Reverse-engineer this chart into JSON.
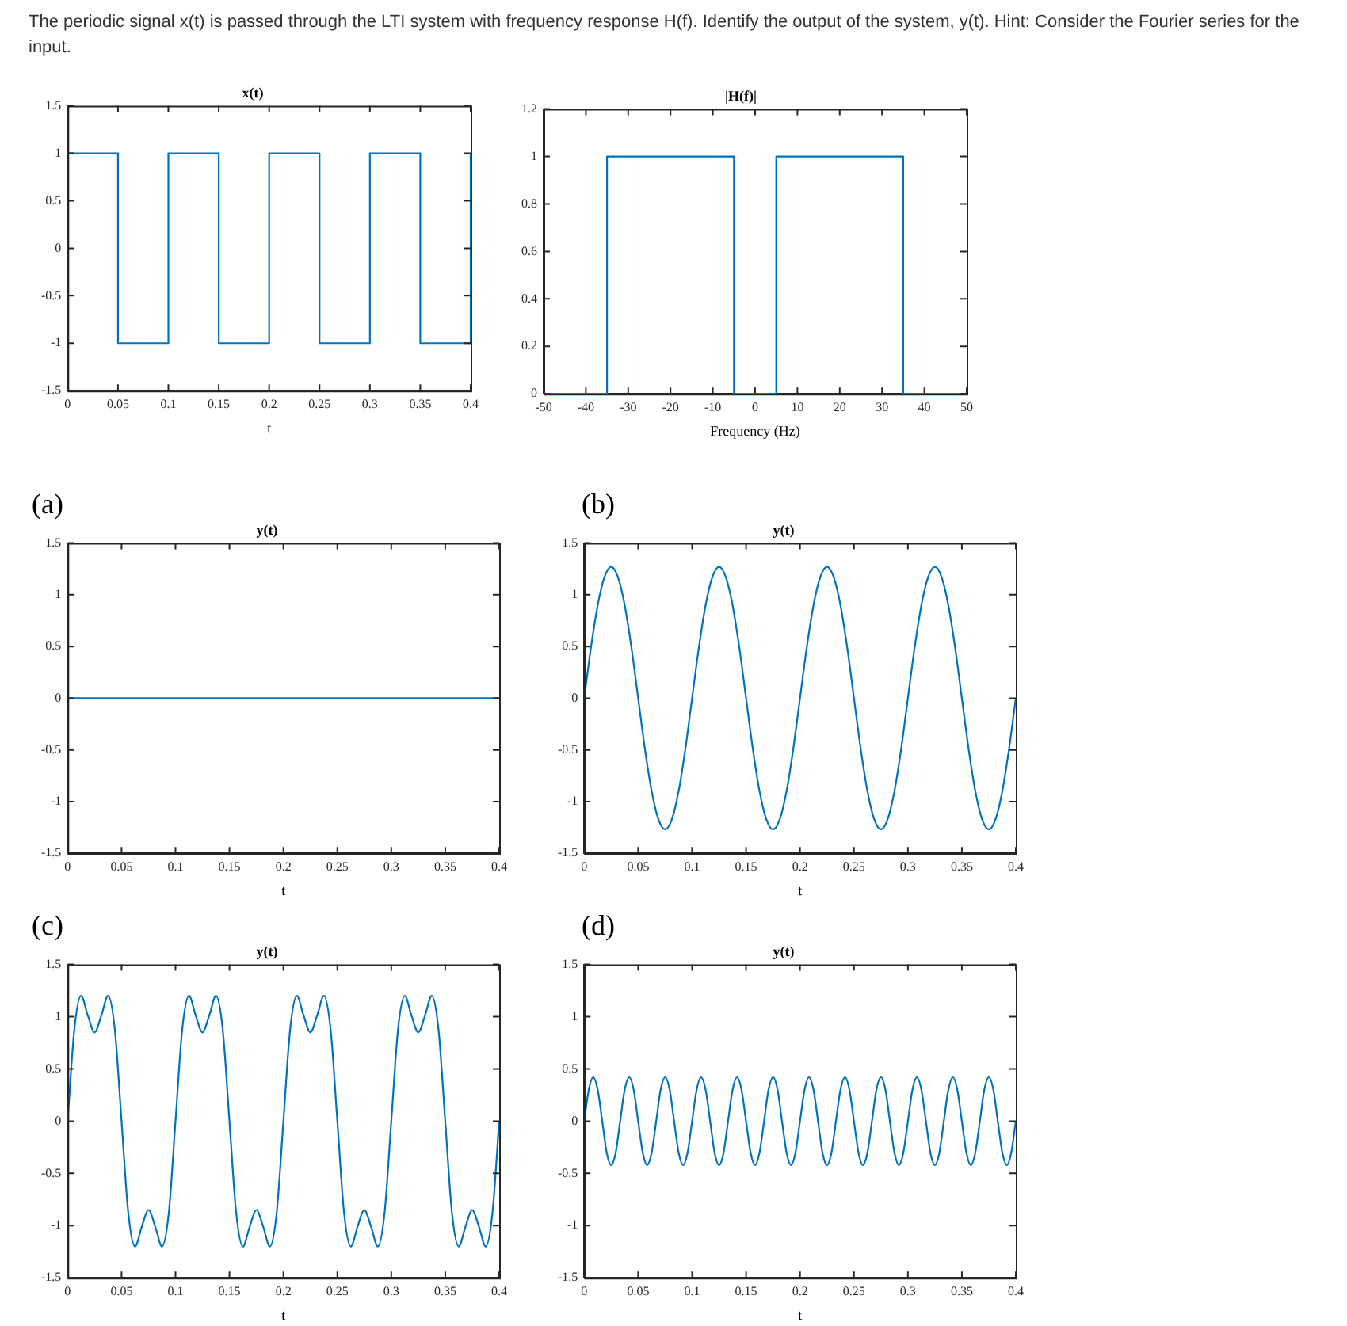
{
  "chart_data": [
    {
      "type": "step",
      "title": "x(t)",
      "xlabel": "t",
      "annotations": [
        "The periodic signal x(t) is passed through the LTI system with frequency response H(f).  Identify the output of the system, y(t).  Hint: Consider the Fourier series for the input."
      ],
      "x": [
        0,
        0.05,
        0.1,
        0.15,
        0.2,
        0.25,
        0.3,
        0.35,
        0.4
      ],
      "values": [
        1,
        -1,
        1,
        -1,
        1,
        -1,
        1,
        -1,
        1
      ],
      "color": "#0072bd",
      "xlim": [
        0,
        0.4
      ],
      "xticks": [
        0,
        0.05,
        0.1,
        0.15,
        0.2,
        0.25,
        0.3,
        0.35,
        0.4
      ],
      "ylim": [
        -1.5,
        1.5
      ],
      "yticks": [
        -1.5,
        -1,
        -0.5,
        0,
        0.5,
        1,
        1.5
      ]
    },
    {
      "type": "step",
      "title": "|H(f)|",
      "xlabel": "Frequency (Hz)",
      "x": [
        -50,
        -35,
        -5,
        5,
        35,
        50
      ],
      "values": [
        0,
        1,
        0,
        1,
        0,
        0
      ],
      "color": "#0072bd",
      "xlim": [
        -50,
        50
      ],
      "xticks": [
        -50,
        -40,
        -30,
        -20,
        -10,
        0,
        10,
        20,
        30,
        40,
        50
      ],
      "ylim": [
        0,
        1.2
      ],
      "yticks": [
        0,
        0.2,
        0.4,
        0.6,
        0.8,
        1,
        1.2
      ]
    },
    {
      "type": "line",
      "title": "y(t)",
      "xlabel": "t",
      "annotations": [
        "(a)"
      ],
      "x": [
        0,
        0.4
      ],
      "values": [
        0,
        0
      ],
      "color": "#0072bd",
      "xlim": [
        0,
        0.4
      ],
      "xticks": [
        0,
        0.05,
        0.1,
        0.15,
        0.2,
        0.25,
        0.3,
        0.35,
        0.4
      ],
      "ylim": [
        -1.5,
        1.5
      ],
      "yticks": [
        -1.5,
        -1,
        -0.5,
        0,
        0.5,
        1,
        1.5
      ]
    },
    {
      "type": "line",
      "title": "y(t)",
      "xlabel": "t",
      "annotations": [
        "(b)"
      ],
      "x": [
        0,
        0.00625,
        0.0125,
        0.01875,
        0.025,
        0.03125,
        0.0375,
        0.04375,
        0.05,
        0.05625,
        0.0625,
        0.06875,
        0.075,
        0.08125,
        0.0875,
        0.09375,
        0.1,
        0.10625,
        0.1125,
        0.11875,
        0.125,
        0.13125,
        0.1375,
        0.14375,
        0.15,
        0.15625,
        0.1625,
        0.16875,
        0.175,
        0.18125,
        0.1875,
        0.19375,
        0.2,
        0.20625,
        0.2125,
        0.21875,
        0.225,
        0.23125,
        0.2375,
        0.24375,
        0.25,
        0.25625,
        0.2625,
        0.26875,
        0.275,
        0.28125,
        0.2875,
        0.29375,
        0.3,
        0.30625,
        0.3125,
        0.31875,
        0.325,
        0.33125,
        0.3375,
        0.34375,
        0.35,
        0.35625,
        0.3625,
        0.36875,
        0.375,
        0.38125,
        0.3875,
        0.39375,
        0.4
      ],
      "values": [
        0,
        0.49,
        0.9,
        1.17,
        1.27,
        1.17,
        0.9,
        0.49,
        0,
        -0.49,
        -0.9,
        -1.17,
        -1.27,
        -1.17,
        -0.9,
        -0.49,
        0,
        0.49,
        0.9,
        1.17,
        1.27,
        1.17,
        0.9,
        0.49,
        0,
        -0.49,
        -0.9,
        -1.17,
        -1.27,
        -1.17,
        -0.9,
        -0.49,
        0,
        0.49,
        0.9,
        1.17,
        1.27,
        1.17,
        0.9,
        0.49,
        0,
        -0.49,
        -0.9,
        -1.17,
        -1.27,
        -1.17,
        -0.9,
        -0.49,
        0,
        0.49,
        0.9,
        1.17,
        1.27,
        1.17,
        0.9,
        0.49,
        0,
        -0.49,
        -0.9,
        -1.17,
        -1.27,
        -1.17,
        -0.9,
        -0.49,
        0
      ],
      "color": "#0072bd",
      "xlim": [
        0,
        0.4
      ],
      "xticks": [
        0,
        0.05,
        0.1,
        0.15,
        0.2,
        0.25,
        0.3,
        0.35,
        0.4
      ],
      "ylim": [
        -1.5,
        1.5
      ],
      "yticks": [
        -1.5,
        -1,
        -0.5,
        0,
        0.5,
        1,
        1.5
      ]
    },
    {
      "type": "line",
      "title": "y(t)",
      "xlabel": "t",
      "annotations": [
        "(c)"
      ],
      "x": [
        0,
        0.00625,
        0.0125,
        0.01875,
        0.025,
        0.03125,
        0.0375,
        0.04375,
        0.05,
        0.05625,
        0.0625,
        0.06875,
        0.075,
        0.08125,
        0.0875,
        0.09375,
        0.1,
        0.10625,
        0.1125,
        0.11875,
        0.125,
        0.13125,
        0.1375,
        0.14375,
        0.15,
        0.15625,
        0.1625,
        0.16875,
        0.175,
        0.18125,
        0.1875,
        0.19375,
        0.2,
        0.20625,
        0.2125,
        0.21875,
        0.225,
        0.23125,
        0.2375,
        0.24375,
        0.25,
        0.25625,
        0.2625,
        0.26875,
        0.275,
        0.28125,
        0.2875,
        0.29375,
        0.3,
        0.30625,
        0.3125,
        0.31875,
        0.325,
        0.33125,
        0.3375,
        0.34375,
        0.35,
        0.35625,
        0.3625,
        0.36875,
        0.375,
        0.38125,
        0.3875,
        0.39375,
        0.4
      ],
      "values": [
        0,
        0.88,
        1.2,
        1.01,
        0.85,
        1.01,
        1.2,
        0.88,
        0,
        -0.88,
        -1.2,
        -1.01,
        -0.85,
        -1.01,
        -1.2,
        -0.88,
        0,
        0.88,
        1.2,
        1.01,
        0.85,
        1.01,
        1.2,
        0.88,
        0,
        -0.88,
        -1.2,
        -1.01,
        -0.85,
        -1.01,
        -1.2,
        -0.88,
        0,
        0.88,
        1.2,
        1.01,
        0.85,
        1.01,
        1.2,
        0.88,
        0,
        -0.88,
        -1.2,
        -1.01,
        -0.85,
        -1.01,
        -1.2,
        -0.88,
        0,
        0.88,
        1.2,
        1.01,
        0.85,
        1.01,
        1.2,
        0.88,
        0,
        -0.88,
        -1.2,
        -1.01,
        -0.85,
        -1.01,
        -1.2,
        -0.88,
        0
      ],
      "color": "#0072bd",
      "xlim": [
        0,
        0.4
      ],
      "xticks": [
        0,
        0.05,
        0.1,
        0.15,
        0.2,
        0.25,
        0.3,
        0.35,
        0.4
      ],
      "ylim": [
        -1.5,
        1.5
      ],
      "yticks": [
        -1.5,
        -1,
        -0.5,
        0,
        0.5,
        1,
        1.5
      ]
    },
    {
      "type": "line",
      "title": "y(t)",
      "xlabel": "t",
      "annotations": [
        "(d)"
      ],
      "x": [
        0,
        0.0042,
        0.0083,
        0.0125,
        0.0167,
        0.0208,
        0.025,
        0.0292,
        0.0333,
        0.0375,
        0.0417,
        0.0458,
        0.05,
        0.0542,
        0.0583,
        0.0625,
        0.0667,
        0.0708,
        0.075,
        0.0792,
        0.0833,
        0.0875,
        0.0917,
        0.0958,
        0.1,
        0.1042,
        0.1083,
        0.1125,
        0.1167,
        0.1208,
        0.125,
        0.1292,
        0.1333,
        0.1375,
        0.1417,
        0.1458,
        0.15,
        0.1542,
        0.1583,
        0.1625,
        0.1667,
        0.1708,
        0.175,
        0.1792,
        0.1833,
        0.1875,
        0.1917,
        0.1958,
        0.2,
        0.2042,
        0.2083,
        0.2125,
        0.2167,
        0.2208,
        0.225,
        0.2292,
        0.2333,
        0.2375,
        0.2417,
        0.2458,
        0.25,
        0.2542,
        0.2583,
        0.2625,
        0.2667,
        0.2708,
        0.275,
        0.2792,
        0.2833,
        0.2875,
        0.2917,
        0.2958,
        0.3,
        0.3042,
        0.3083,
        0.3125,
        0.3167,
        0.3208,
        0.325,
        0.3292,
        0.3333,
        0.3375,
        0.3417,
        0.3458,
        0.35,
        0.3542,
        0.3583,
        0.3625,
        0.3667,
        0.3708,
        0.375,
        0.3792,
        0.3833,
        0.3875,
        0.3917,
        0.3958,
        0.4
      ],
      "values": [
        0,
        0.3,
        0.42,
        0.3,
        0,
        -0.3,
        -0.42,
        -0.3,
        0,
        0.3,
        0.42,
        0.3,
        0,
        -0.3,
        -0.42,
        -0.3,
        0,
        0.3,
        0.42,
        0.3,
        0,
        -0.3,
        -0.42,
        -0.3,
        0,
        0.3,
        0.42,
        0.3,
        0,
        -0.3,
        -0.42,
        -0.3,
        0,
        0.3,
        0.42,
        0.3,
        0,
        -0.3,
        -0.42,
        -0.3,
        0,
        0.3,
        0.42,
        0.3,
        0,
        -0.3,
        -0.42,
        -0.3,
        0,
        0.3,
        0.42,
        0.3,
        0,
        -0.3,
        -0.42,
        -0.3,
        0,
        0.3,
        0.42,
        0.3,
        0,
        -0.3,
        -0.42,
        -0.3,
        0,
        0.3,
        0.42,
        0.3,
        0,
        -0.3,
        -0.42,
        -0.3,
        0,
        0.3,
        0.42,
        0.3,
        0,
        -0.3,
        -0.42,
        -0.3,
        0,
        0.3,
        0.42,
        0.3,
        0,
        -0.3,
        -0.42,
        -0.3,
        0,
        0.3,
        0.42,
        0.3,
        0,
        -0.3,
        -0.42,
        -0.3,
        0
      ],
      "color": "#0072bd",
      "xlim": [
        0,
        0.4
      ],
      "xticks": [
        0,
        0.05,
        0.1,
        0.15,
        0.2,
        0.25,
        0.3,
        0.35,
        0.4
      ],
      "ylim": [
        -1.5,
        1.5
      ],
      "yticks": [
        -1.5,
        -1,
        -0.5,
        0,
        0.5,
        1,
        1.5
      ]
    }
  ]
}
